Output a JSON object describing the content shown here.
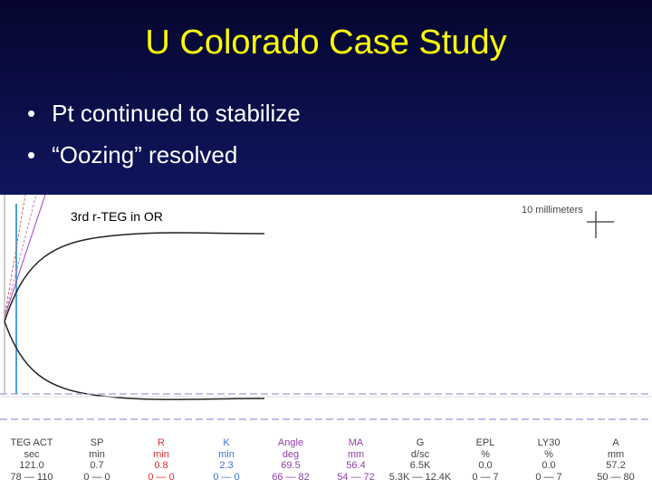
{
  "slide": {
    "title": "U Colorado Case Study",
    "bullets": [
      "Pt continued to stabilize",
      "“Oozing”  resolved"
    ],
    "panel": {
      "label": "3rd r-TEG in OR",
      "scale_label": "10 millimeters",
      "parameters": [
        {
          "name": "TEG ACT",
          "unit": "sec",
          "value": "121.0",
          "range": "78 — 110"
        },
        {
          "name": "SP",
          "unit": "min",
          "value": "0.7",
          "range": "0 — 0"
        },
        {
          "name": "R",
          "unit": "min",
          "value": "0.8",
          "range": "0 — 0"
        },
        {
          "name": "K",
          "unit": "min",
          "value": "2.3",
          "range": "0 — 0"
        },
        {
          "name": "Angle",
          "unit": "deg",
          "value": "69.5",
          "range": "66 — 82"
        },
        {
          "name": "MA",
          "unit": "mm",
          "value": "56.4",
          "range": "54 — 72"
        },
        {
          "name": "G",
          "unit": "d/sc",
          "value": "6.5K",
          "range": "5.3K — 12.4K"
        },
        {
          "name": "EPL",
          "unit": "%",
          "value": "0.0",
          "range": "0 — 7"
        },
        {
          "name": "LY30",
          "unit": "%",
          "value": "0.0",
          "range": "0 — 7"
        },
        {
          "name": "A",
          "unit": "mm",
          "value": "57.2",
          "range": "50 — 80"
        }
      ]
    }
  }
}
